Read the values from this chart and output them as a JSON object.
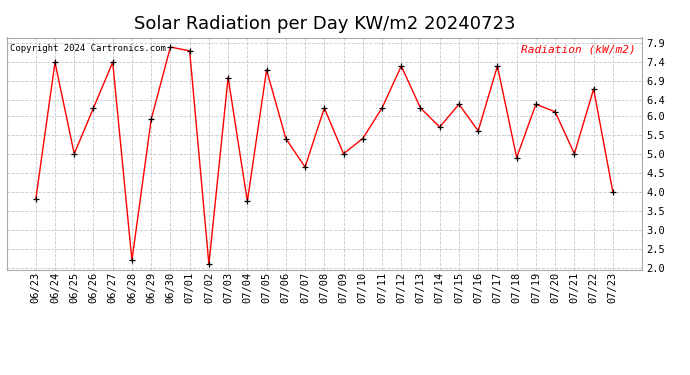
{
  "title": "Solar Radiation per Day KW/m2 20240723",
  "copyright_text": "Copyright 2024 Cartronics.com",
  "legend_label": "Radiation (kW/m2)",
  "x_labels": [
    "06/23",
    "06/24",
    "06/25",
    "06/26",
    "06/27",
    "06/28",
    "06/29",
    "06/30",
    "07/01",
    "07/02",
    "07/03",
    "07/04",
    "07/05",
    "07/06",
    "07/07",
    "07/08",
    "07/09",
    "07/10",
    "07/11",
    "07/12",
    "07/13",
    "07/14",
    "07/15",
    "07/16",
    "07/17",
    "07/18",
    "07/19",
    "07/20",
    "07/21",
    "07/22",
    "07/23"
  ],
  "y_values": [
    3.8,
    7.4,
    5.0,
    6.2,
    7.4,
    2.2,
    5.9,
    7.8,
    7.7,
    2.1,
    7.0,
    3.75,
    7.2,
    5.4,
    4.65,
    6.2,
    5.0,
    5.4,
    6.2,
    7.3,
    6.2,
    5.7,
    6.3,
    5.6,
    7.3,
    4.9,
    6.3,
    6.1,
    5.0,
    6.7,
    4.0
  ],
  "line_color": "#ff0000",
  "marker_color": "#000000",
  "background_color": "#ffffff",
  "grid_color": "#c8c8c8",
  "title_fontsize": 13,
  "tick_fontsize": 7.5,
  "ylim": [
    1.95,
    8.05
  ],
  "yticks": [
    2.0,
    2.5,
    3.0,
    3.5,
    4.0,
    4.5,
    5.0,
    5.5,
    6.0,
    6.4,
    6.9,
    7.4,
    7.9
  ]
}
